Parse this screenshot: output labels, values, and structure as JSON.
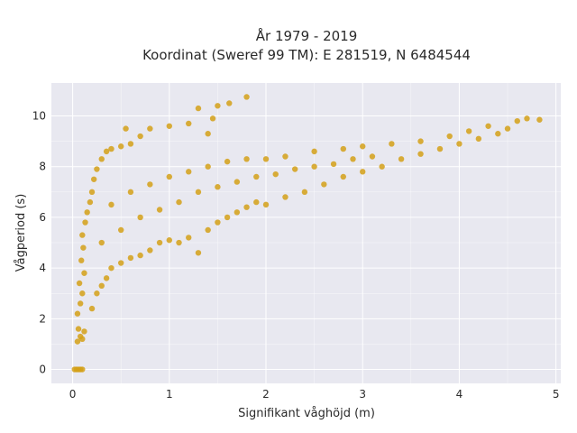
{
  "chart_data": {
    "type": "scatter",
    "title": "År 1979 - 2019",
    "subtitle": "Koordinat (Sweref 99 TM): E 281519, N 6484544",
    "xlabel": "Signifikant våghöjd (m)",
    "ylabel": "Vågperiod (s)",
    "xlim": [
      -0.22,
      5.05
    ],
    "ylim": [
      -0.55,
      11.3
    ],
    "x_ticks": [
      0,
      1,
      2,
      3,
      4,
      5
    ],
    "y_ticks": [
      0,
      2,
      4,
      6,
      8,
      10
    ],
    "grid": true,
    "legend": "none",
    "marker_color": "#D4A017",
    "plot_background": "#E8E8F0",
    "grid_color": "#ffffff",
    "series": [
      {
        "points": [
          [
            0.02,
            0.0
          ],
          [
            0.04,
            0.0
          ],
          [
            0.06,
            0.0
          ],
          [
            0.08,
            0.0
          ],
          [
            0.1,
            0.0
          ],
          [
            0.05,
            1.1
          ],
          [
            0.08,
            1.3
          ],
          [
            0.06,
            1.6
          ],
          [
            0.1,
            1.2
          ],
          [
            0.12,
            1.5
          ],
          [
            0.05,
            2.2
          ],
          [
            0.08,
            2.6
          ],
          [
            0.1,
            3.0
          ],
          [
            0.07,
            3.4
          ],
          [
            0.12,
            3.8
          ],
          [
            0.09,
            4.3
          ],
          [
            0.11,
            4.8
          ],
          [
            0.1,
            5.3
          ],
          [
            0.13,
            5.8
          ],
          [
            0.15,
            6.2
          ],
          [
            0.18,
            6.6
          ],
          [
            0.2,
            7.0
          ],
          [
            0.22,
            7.5
          ],
          [
            0.25,
            7.9
          ],
          [
            0.3,
            8.3
          ],
          [
            0.35,
            8.6
          ],
          [
            0.4,
            8.7
          ],
          [
            0.5,
            8.8
          ],
          [
            0.6,
            8.9
          ],
          [
            0.7,
            9.2
          ],
          [
            0.55,
            9.5
          ],
          [
            0.8,
            9.5
          ],
          [
            1.0,
            9.6
          ],
          [
            1.2,
            9.7
          ],
          [
            1.4,
            9.3
          ],
          [
            1.3,
            10.3
          ],
          [
            1.5,
            10.4
          ],
          [
            1.62,
            10.5
          ],
          [
            1.8,
            10.75
          ],
          [
            1.45,
            9.9
          ],
          [
            0.2,
            2.4
          ],
          [
            0.25,
            3.0
          ],
          [
            0.3,
            3.3
          ],
          [
            0.35,
            3.6
          ],
          [
            0.4,
            4.0
          ],
          [
            0.5,
            4.2
          ],
          [
            0.6,
            4.4
          ],
          [
            0.7,
            4.5
          ],
          [
            0.8,
            4.7
          ],
          [
            0.9,
            5.0
          ],
          [
            1.0,
            5.1
          ],
          [
            1.1,
            5.0
          ],
          [
            1.2,
            5.2
          ],
          [
            1.3,
            4.6
          ],
          [
            1.4,
            5.5
          ],
          [
            1.5,
            5.8
          ],
          [
            1.6,
            6.0
          ],
          [
            1.7,
            6.2
          ],
          [
            1.8,
            6.4
          ],
          [
            1.9,
            6.6
          ],
          [
            2.0,
            6.5
          ],
          [
            2.2,
            6.8
          ],
          [
            2.4,
            7.0
          ],
          [
            2.6,
            7.3
          ],
          [
            2.8,
            7.6
          ],
          [
            3.0,
            7.8
          ],
          [
            3.2,
            8.0
          ],
          [
            3.4,
            8.3
          ],
          [
            3.6,
            8.5
          ],
          [
            3.8,
            8.7
          ],
          [
            4.0,
            8.9
          ],
          [
            4.2,
            9.1
          ],
          [
            4.4,
            9.3
          ],
          [
            4.5,
            9.5
          ],
          [
            4.6,
            9.8
          ],
          [
            4.7,
            9.9
          ],
          [
            4.83,
            9.85
          ],
          [
            4.3,
            9.6
          ],
          [
            4.1,
            9.4
          ],
          [
            3.9,
            9.2
          ],
          [
            0.4,
            6.5
          ],
          [
            0.6,
            7.0
          ],
          [
            0.8,
            7.3
          ],
          [
            1.0,
            7.6
          ],
          [
            1.2,
            7.8
          ],
          [
            1.4,
            8.0
          ],
          [
            1.6,
            8.2
          ],
          [
            1.8,
            8.3
          ],
          [
            2.0,
            8.3
          ],
          [
            2.2,
            8.4
          ],
          [
            2.5,
            8.6
          ],
          [
            2.8,
            8.7
          ],
          [
            3.0,
            8.8
          ],
          [
            3.3,
            8.9
          ],
          [
            3.6,
            9.0
          ],
          [
            0.3,
            5.0
          ],
          [
            0.5,
            5.5
          ],
          [
            0.7,
            6.0
          ],
          [
            0.9,
            6.3
          ],
          [
            1.1,
            6.6
          ],
          [
            1.3,
            7.0
          ],
          [
            1.5,
            7.2
          ],
          [
            1.7,
            7.4
          ],
          [
            1.9,
            7.6
          ],
          [
            2.1,
            7.7
          ],
          [
            2.3,
            7.9
          ],
          [
            2.5,
            8.0
          ],
          [
            2.7,
            8.1
          ],
          [
            2.9,
            8.3
          ],
          [
            3.1,
            8.4
          ]
        ]
      }
    ]
  }
}
